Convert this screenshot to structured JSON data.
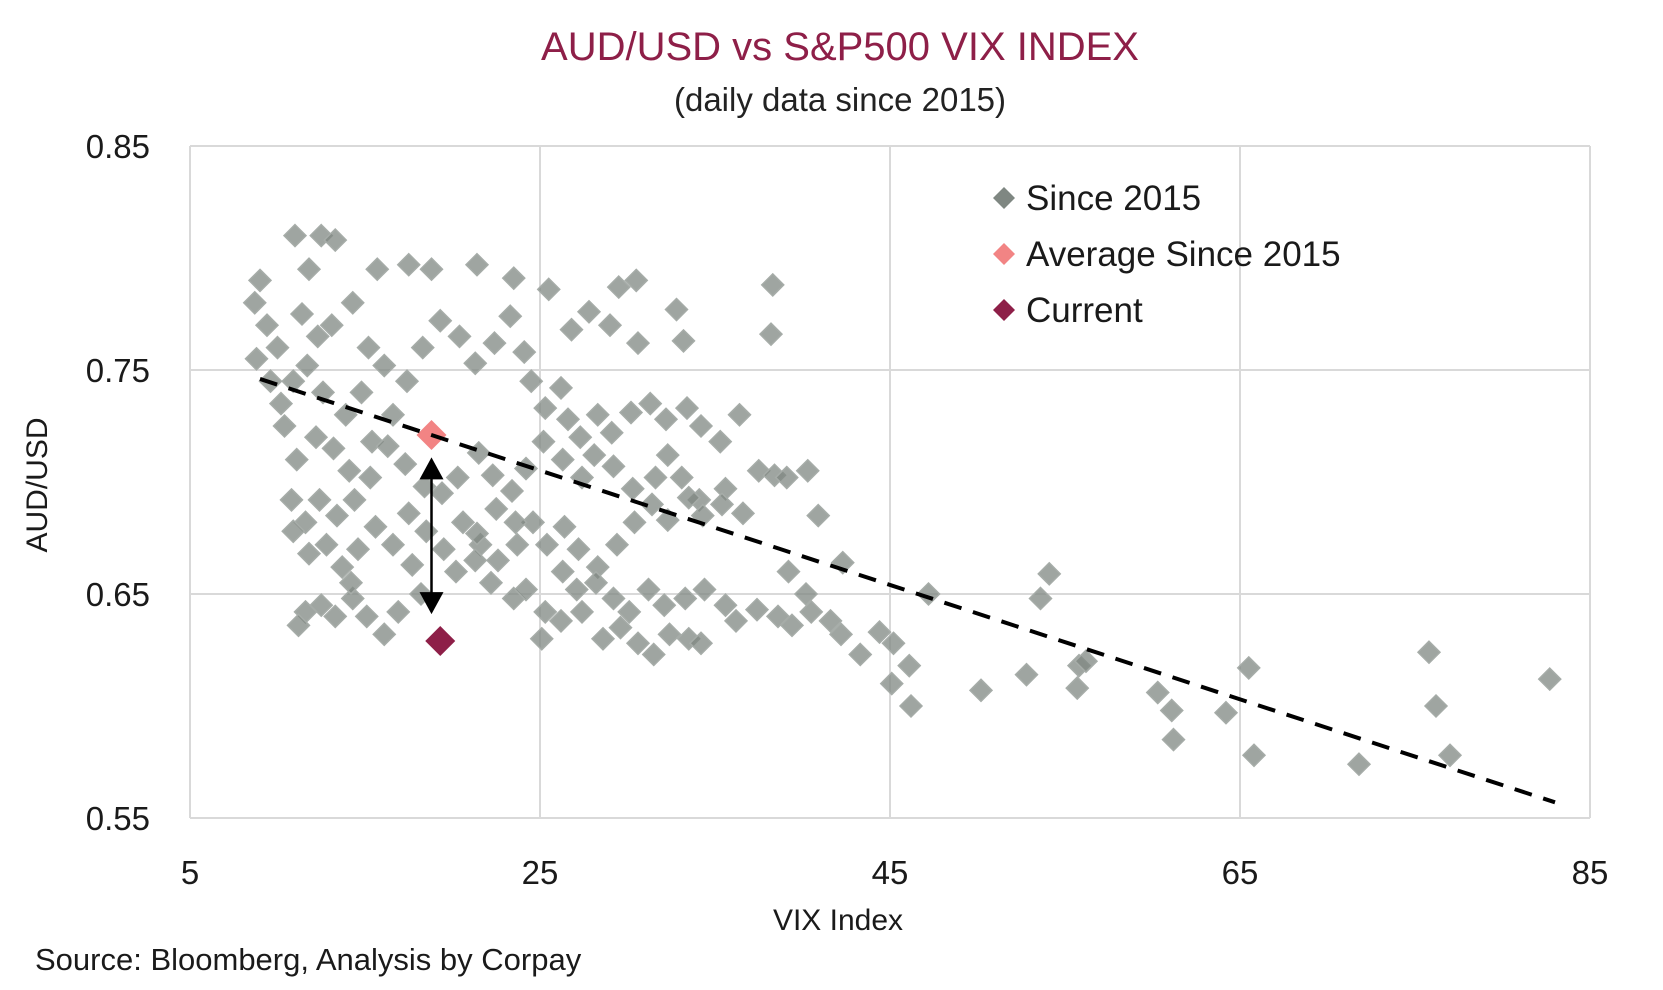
{
  "chart_data": {
    "type": "scatter",
    "title": "AUD/USD vs S&P500 VIX INDEX",
    "subtitle": "(daily data since 2015)",
    "xlabel": "VIX Index",
    "ylabel": "AUD/USD",
    "xlim": [
      5,
      85
    ],
    "ylim": [
      0.55,
      0.85
    ],
    "x_ticks": [
      "5",
      "25",
      "45",
      "65",
      "85"
    ],
    "y_ticks": [
      "0.85",
      "0.75",
      "0.65",
      "0.55"
    ],
    "grid": true,
    "legend_position": "top-right",
    "source": "Source: Bloomberg, Analysis by Corpay",
    "series": [
      {
        "name": "Since 2015",
        "color": "#7f8782",
        "marker": "diamond",
        "points": [
          [
            11,
            0.81
          ],
          [
            12.5,
            0.81
          ],
          [
            13.3,
            0.808
          ],
          [
            11.8,
            0.795
          ],
          [
            15.7,
            0.795
          ],
          [
            17.5,
            0.797
          ],
          [
            18.8,
            0.795
          ],
          [
            21.4,
            0.797
          ],
          [
            23.5,
            0.791
          ],
          [
            25.5,
            0.786
          ],
          [
            29.5,
            0.787
          ],
          [
            30.5,
            0.79
          ],
          [
            38.3,
            0.788
          ],
          [
            27.8,
            0.776
          ],
          [
            32.8,
            0.777
          ],
          [
            26.8,
            0.768
          ],
          [
            29,
            0.77
          ],
          [
            30.6,
            0.762
          ],
          [
            38.2,
            0.766
          ],
          [
            33.2,
            0.763
          ],
          [
            9,
            0.79
          ],
          [
            8.7,
            0.78
          ],
          [
            9.4,
            0.77
          ],
          [
            10,
            0.76
          ],
          [
            8.8,
            0.755
          ],
          [
            9.6,
            0.745
          ],
          [
            10.2,
            0.735
          ],
          [
            11.4,
            0.775
          ],
          [
            12.3,
            0.765
          ],
          [
            13.1,
            0.77
          ],
          [
            14.3,
            0.78
          ],
          [
            15.2,
            0.76
          ],
          [
            16.1,
            0.752
          ],
          [
            14.8,
            0.74
          ],
          [
            13.9,
            0.73
          ],
          [
            12.6,
            0.74
          ],
          [
            11.7,
            0.752
          ],
          [
            10.9,
            0.745
          ],
          [
            10.4,
            0.725
          ],
          [
            11.1,
            0.71
          ],
          [
            12.2,
            0.72
          ],
          [
            13.2,
            0.715
          ],
          [
            14.1,
            0.705
          ],
          [
            15.4,
            0.718
          ],
          [
            16.6,
            0.73
          ],
          [
            17.4,
            0.745
          ],
          [
            18.3,
            0.76
          ],
          [
            19.3,
            0.772
          ],
          [
            20.4,
            0.765
          ],
          [
            21.3,
            0.753
          ],
          [
            22.4,
            0.762
          ],
          [
            23.3,
            0.774
          ],
          [
            24.1,
            0.758
          ],
          [
            24.5,
            0.745
          ],
          [
            25.3,
            0.733
          ],
          [
            26.2,
            0.742
          ],
          [
            26.6,
            0.728
          ],
          [
            27.3,
            0.72
          ],
          [
            28.3,
            0.73
          ],
          [
            29.1,
            0.722
          ],
          [
            30.2,
            0.731
          ],
          [
            31.3,
            0.735
          ],
          [
            32.2,
            0.728
          ],
          [
            33.4,
            0.733
          ],
          [
            34.2,
            0.725
          ],
          [
            35.3,
            0.718
          ],
          [
            36.4,
            0.73
          ],
          [
            37.5,
            0.705
          ],
          [
            38.4,
            0.703
          ],
          [
            39.1,
            0.702
          ],
          [
            35.6,
            0.697
          ],
          [
            34.1,
            0.692
          ],
          [
            33.1,
            0.702
          ],
          [
            32.3,
            0.712
          ],
          [
            31.6,
            0.702
          ],
          [
            30.3,
            0.697
          ],
          [
            29.2,
            0.707
          ],
          [
            28.1,
            0.712
          ],
          [
            27.4,
            0.702
          ],
          [
            26.3,
            0.71
          ],
          [
            25.2,
            0.718
          ],
          [
            24.2,
            0.706
          ],
          [
            23.4,
            0.696
          ],
          [
            22.3,
            0.703
          ],
          [
            21.5,
            0.713
          ],
          [
            20.3,
            0.702
          ],
          [
            19.4,
            0.695
          ],
          [
            18.4,
            0.698
          ],
          [
            17.3,
            0.708
          ],
          [
            16.3,
            0.716
          ],
          [
            15.3,
            0.702
          ],
          [
            14.4,
            0.692
          ],
          [
            13.4,
            0.685
          ],
          [
            12.4,
            0.692
          ],
          [
            11.6,
            0.682
          ],
          [
            10.8,
            0.692
          ],
          [
            10.9,
            0.678
          ],
          [
            11.8,
            0.668
          ],
          [
            12.8,
            0.672
          ],
          [
            13.7,
            0.662
          ],
          [
            14.6,
            0.67
          ],
          [
            15.6,
            0.68
          ],
          [
            16.6,
            0.672
          ],
          [
            17.5,
            0.686
          ],
          [
            18.5,
            0.678
          ],
          [
            19.5,
            0.67
          ],
          [
            20.6,
            0.682
          ],
          [
            21.6,
            0.672
          ],
          [
            22.6,
            0.665
          ],
          [
            23.7,
            0.672
          ],
          [
            24.6,
            0.682
          ],
          [
            25.4,
            0.672
          ],
          [
            26.4,
            0.68
          ],
          [
            27.2,
            0.67
          ],
          [
            28.3,
            0.662
          ],
          [
            29.4,
            0.672
          ],
          [
            30.4,
            0.682
          ],
          [
            31.4,
            0.69
          ],
          [
            32.3,
            0.683
          ],
          [
            33.5,
            0.693
          ],
          [
            34.3,
            0.685
          ],
          [
            35.4,
            0.69
          ],
          [
            36.6,
            0.686
          ],
          [
            27.1,
            0.652
          ],
          [
            28.2,
            0.655
          ],
          [
            29.2,
            0.648
          ],
          [
            30.1,
            0.642
          ],
          [
            31.2,
            0.652
          ],
          [
            32.1,
            0.645
          ],
          [
            33.3,
            0.648
          ],
          [
            34.4,
            0.652
          ],
          [
            35.6,
            0.645
          ],
          [
            36.2,
            0.638
          ],
          [
            37.4,
            0.643
          ],
          [
            38.6,
            0.64
          ],
          [
            39.4,
            0.636
          ],
          [
            40.5,
            0.642
          ],
          [
            41.6,
            0.638
          ],
          [
            42.2,
            0.632
          ],
          [
            43.3,
            0.623
          ],
          [
            44.4,
            0.633
          ],
          [
            45.2,
            0.628
          ],
          [
            46.1,
            0.618
          ],
          [
            45.1,
            0.61
          ],
          [
            46.2,
            0.6
          ],
          [
            50.2,
            0.607
          ],
          [
            47.2,
            0.65
          ],
          [
            40.3,
            0.705
          ],
          [
            40.9,
            0.685
          ],
          [
            39.2,
            0.66
          ],
          [
            42.3,
            0.664
          ],
          [
            40.2,
            0.65
          ],
          [
            53.6,
            0.648
          ],
          [
            54.1,
            0.659
          ],
          [
            52.8,
            0.614
          ],
          [
            55.8,
            0.618
          ],
          [
            56.2,
            0.62
          ],
          [
            55.7,
            0.608
          ],
          [
            60.3,
            0.606
          ],
          [
            61.1,
            0.598
          ],
          [
            61.2,
            0.585
          ],
          [
            64.2,
            0.597
          ],
          [
            65.5,
            0.617
          ],
          [
            65.8,
            0.578
          ],
          [
            71.8,
            0.574
          ],
          [
            75.8,
            0.624
          ],
          [
            76.2,
            0.6
          ],
          [
            77,
            0.578
          ],
          [
            82.7,
            0.612
          ],
          [
            12.5,
            0.645
          ],
          [
            11.6,
            0.642
          ],
          [
            11.2,
            0.636
          ],
          [
            13.3,
            0.64
          ],
          [
            14.3,
            0.648
          ],
          [
            16.1,
            0.632
          ],
          [
            15.1,
            0.64
          ],
          [
            16.9,
            0.642
          ],
          [
            18.2,
            0.65
          ],
          [
            17.7,
            0.663
          ],
          [
            14.2,
            0.655
          ],
          [
            20.2,
            0.66
          ],
          [
            21.3,
            0.665
          ],
          [
            22.2,
            0.655
          ],
          [
            23.5,
            0.648
          ],
          [
            24.2,
            0.652
          ],
          [
            25.3,
            0.642
          ],
          [
            26.2,
            0.638
          ],
          [
            25.1,
            0.63
          ],
          [
            26.3,
            0.66
          ],
          [
            27.4,
            0.642
          ],
          [
            28.6,
            0.63
          ],
          [
            29.6,
            0.635
          ],
          [
            30.6,
            0.628
          ],
          [
            31.5,
            0.623
          ],
          [
            32.4,
            0.632
          ],
          [
            33.5,
            0.63
          ],
          [
            34.2,
            0.628
          ],
          [
            21.4,
            0.677
          ],
          [
            22.5,
            0.688
          ],
          [
            23.6,
            0.682
          ]
        ]
      },
      {
        "name": "Average Since 2015",
        "color": "#f28484",
        "marker": "diamond",
        "points": [
          [
            18.8,
            0.721
          ]
        ]
      },
      {
        "name": "Current",
        "color": "#8e1f48",
        "marker": "diamond",
        "points": [
          [
            19.3,
            0.629
          ]
        ]
      }
    ],
    "trendline": {
      "style": "dashed",
      "color": "#000000",
      "x": [
        9,
        83
      ],
      "y": [
        0.746,
        0.557
      ]
    },
    "annotation_arrow": {
      "x": 18.8,
      "y_from": 0.711,
      "y_to": 0.641
    }
  }
}
